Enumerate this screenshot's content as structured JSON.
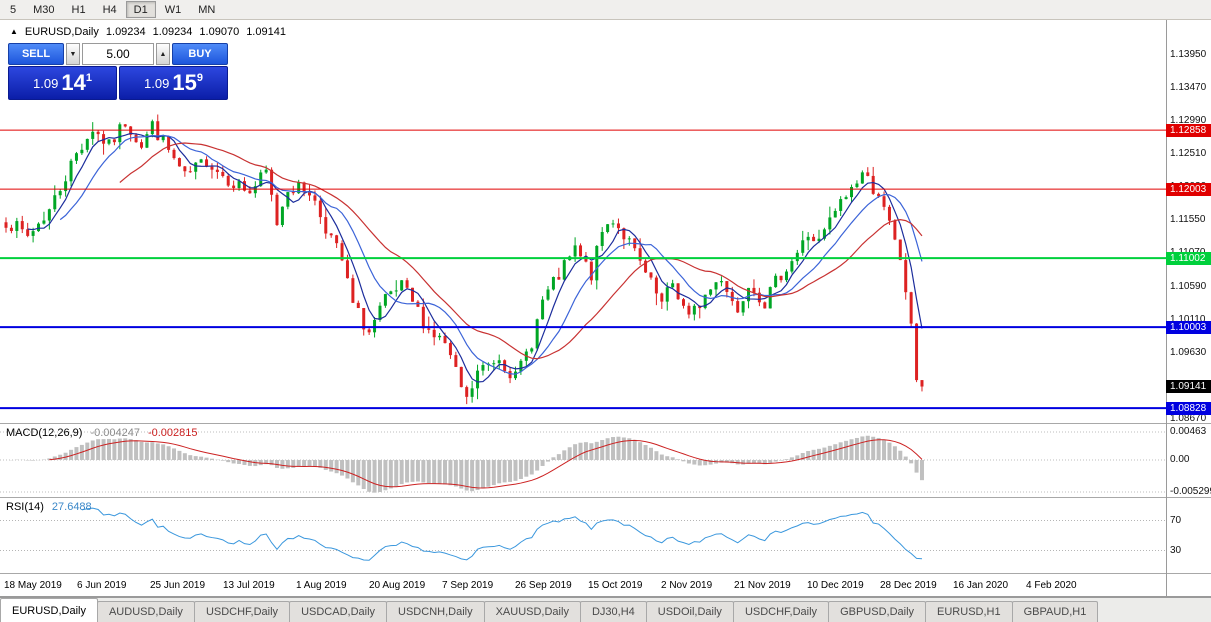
{
  "toolbar": {
    "periods": [
      {
        "label": "5"
      },
      {
        "label": "M30"
      },
      {
        "label": "H1"
      },
      {
        "label": "H4"
      },
      {
        "label": "D1",
        "active": true
      },
      {
        "label": "W1"
      },
      {
        "label": "MN"
      }
    ]
  },
  "header": {
    "collapse_icon": "▲",
    "symbol": "EURUSD,Daily",
    "open": "1.09234",
    "high": "1.09234",
    "low": "1.09070",
    "close": "1.09141"
  },
  "one_click": {
    "sell_label": "SELL",
    "buy_label": "BUY",
    "lot": "5.00",
    "spin_down": "▼",
    "spin_up": "▲",
    "sell_big": "1.09",
    "sell_mid": "14",
    "sell_sup": "1",
    "buy_big": "1.09",
    "buy_mid": "15",
    "buy_sup": "9"
  },
  "price_axis": {
    "ticks": [
      "1.13950",
      "1.13470",
      "1.12990",
      "1.12510",
      "1.12030",
      "1.11550",
      "1.11070",
      "1.10590",
      "1.10110",
      "1.09630",
      "1.09150",
      "1.08670"
    ]
  },
  "macd_panel": {
    "title": "MACD(12,26,9)",
    "main_value": "-0.004247",
    "signal_value": "-0.002815",
    "axis": [
      "0.00463",
      "0.00",
      "-0.005299"
    ]
  },
  "rsi_panel": {
    "title": "RSI(14)",
    "value": "27.6488",
    "axis": [
      "70",
      "30"
    ]
  },
  "date_axis": {
    "labels": [
      "18 May 2019",
      "6 Jun 2019",
      "25 Jun 2019",
      "13 Jul 2019",
      "1 Aug 2019",
      "20 Aug 2019",
      "7 Sep 2019",
      "26 Sep 2019",
      "15 Oct 2019",
      "2 Nov 2019",
      "21 Nov 2019",
      "10 Dec 2019",
      "28 Dec 2019",
      "16 Jan 2020",
      "4 Feb 2020"
    ]
  },
  "tabs": [
    {
      "label": "EURUSD,Daily",
      "active": true
    },
    {
      "label": "AUDUSD,Daily"
    },
    {
      "label": "USDCHF,Daily"
    },
    {
      "label": "USDCAD,Daily"
    },
    {
      "label": "USDCNH,Daily"
    },
    {
      "label": "XAUUSD,Daily"
    },
    {
      "label": "DJ30,H4"
    },
    {
      "label": "USDOil,Daily"
    },
    {
      "label": "USDCHF,Daily"
    },
    {
      "label": "GBPUSD,Daily"
    },
    {
      "label": "EURUSD,H1"
    },
    {
      "label": "GBPAUD,H1"
    }
  ],
  "chart_data": {
    "type": "candlestick",
    "symbol": "EURUSD",
    "timeframe": "Daily",
    "bars": 170,
    "y_axis_range": [
      1.0861,
      1.1447
    ],
    "last_bar": {
      "open": 1.09234,
      "high": 1.09234,
      "low": 1.0907,
      "close": 1.09141
    },
    "up_color": "#00a625",
    "down_color": "#dd2222",
    "anchors": [
      [
        0,
        1.1155
      ],
      [
        4,
        1.1132
      ],
      [
        8,
        1.117
      ],
      [
        13,
        1.1252
      ],
      [
        16,
        1.1288
      ],
      [
        19,
        1.1262
      ],
      [
        22,
        1.1298
      ],
      [
        25,
        1.1265
      ],
      [
        27,
        1.1293
      ],
      [
        30,
        1.1256
      ],
      [
        33,
        1.1216
      ],
      [
        37,
        1.1243
      ],
      [
        40,
        1.1221
      ],
      [
        45,
        1.1196
      ],
      [
        48,
        1.1224
      ],
      [
        50,
        1.1152
      ],
      [
        52,
        1.1204
      ],
      [
        56,
        1.1198
      ],
      [
        59,
        1.1146
      ],
      [
        62,
        1.1096
      ],
      [
        64,
        1.1032
      ],
      [
        67,
        1.0992
      ],
      [
        70,
        1.1038
      ],
      [
        73,
        1.1058
      ],
      [
        75,
        1.1036
      ],
      [
        78,
        1.0996
      ],
      [
        81,
        1.0976
      ],
      [
        83,
        1.0932
      ],
      [
        85,
        1.0892
      ],
      [
        87,
        1.0934
      ],
      [
        91,
        1.0958
      ],
      [
        94,
        1.0926
      ],
      [
        97,
        1.098
      ],
      [
        99,
        1.1038
      ],
      [
        102,
        1.1074
      ],
      [
        105,
        1.1112
      ],
      [
        108,
        1.1076
      ],
      [
        110,
        1.1138
      ],
      [
        112,
        1.1158
      ],
      [
        115,
        1.1122
      ],
      [
        118,
        1.1076
      ],
      [
        121,
        1.1032
      ],
      [
        123,
        1.1064
      ],
      [
        126,
        1.1012
      ],
      [
        129,
        1.1046
      ],
      [
        132,
        1.1074
      ],
      [
        135,
        1.1022
      ],
      [
        137,
        1.1068
      ],
      [
        140,
        1.1036
      ],
      [
        143,
        1.1078
      ],
      [
        146,
        1.1108
      ],
      [
        148,
        1.1134
      ],
      [
        150,
        1.1122
      ],
      [
        153,
        1.1168
      ],
      [
        156,
        1.1202
      ],
      [
        158,
        1.1224
      ],
      [
        161,
        1.1192
      ],
      [
        163,
        1.1152
      ],
      [
        165,
        1.1098
      ],
      [
        166,
        1.1052
      ],
      [
        167,
        1.1002
      ],
      [
        168,
        1.095
      ],
      [
        169,
        1.0914
      ]
    ],
    "hlines": [
      {
        "price": 1.12858,
        "label": "1.12858",
        "color": "#e00000",
        "width": 1
      },
      {
        "price": 1.12003,
        "label": "1.12003",
        "color": "#e00000",
        "width": 1
      },
      {
        "price": 1.11002,
        "label": "1.11002",
        "color": "#00d03c",
        "width": 2
      },
      {
        "price": 1.10003,
        "label": "1.10003",
        "color": "#0000e0",
        "width": 2
      },
      {
        "price": 1.08828,
        "label": "1.08828",
        "color": "#0000e0",
        "width": 2
      }
    ],
    "bid": {
      "price": 1.09141,
      "label": "1.09141",
      "color": "#000000"
    },
    "moving_averages": [
      {
        "period": 5,
        "color": "#1c2d9c"
      },
      {
        "period": 11,
        "color": "#3c64d8"
      },
      {
        "period": 22,
        "color": "#c83232"
      }
    ],
    "macd": {
      "fast": 12,
      "slow": 26,
      "signal": 9,
      "histogram_color": "#c0c0c0",
      "signal_color": "#cc2222"
    },
    "rsi": {
      "period": 14,
      "color": "#3a97dd",
      "levels": [
        70,
        30
      ]
    }
  }
}
